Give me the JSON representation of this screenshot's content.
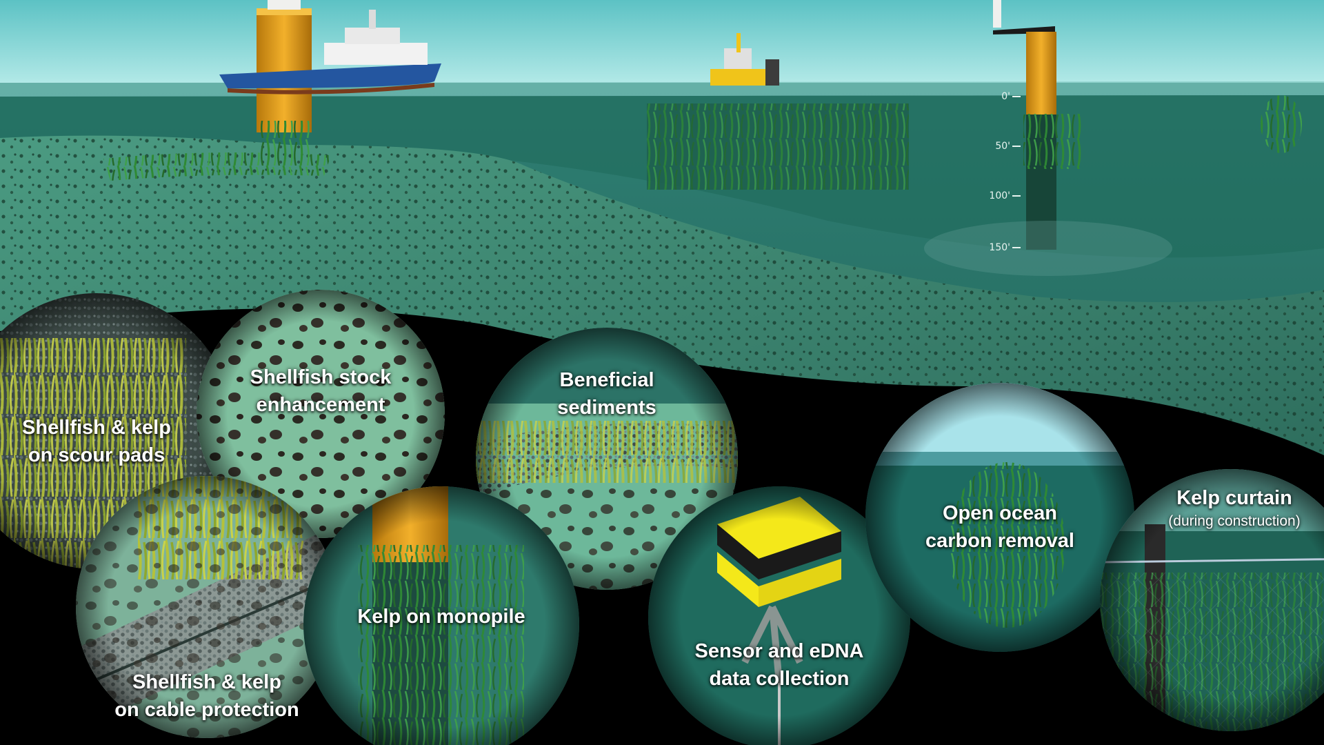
{
  "depth_scale": [
    "0'",
    "50'",
    "100'",
    "150'"
  ],
  "bubbles": {
    "scour_pads": "Shellfish & kelp\non scour pads",
    "stock": "Shellfish stock\nenhancement",
    "sediments": "Beneficial\nsediments",
    "cable": "Shellfish & kelp\non cable protection",
    "monopile": "Kelp on monopile",
    "sensor": "Sensor and eDNA\ndata collection",
    "carbon": "Open ocean\ncarbon removal",
    "curtain_title": "Kelp curtain",
    "curtain_sub": "(during construction)"
  },
  "colors": {
    "sky": "#8fd6d6",
    "water_surface": "#4fa7a4",
    "seafloor": "#3f8b74",
    "monopile_yellow": "#e6a11b",
    "kelp": "#2e7d32"
  }
}
